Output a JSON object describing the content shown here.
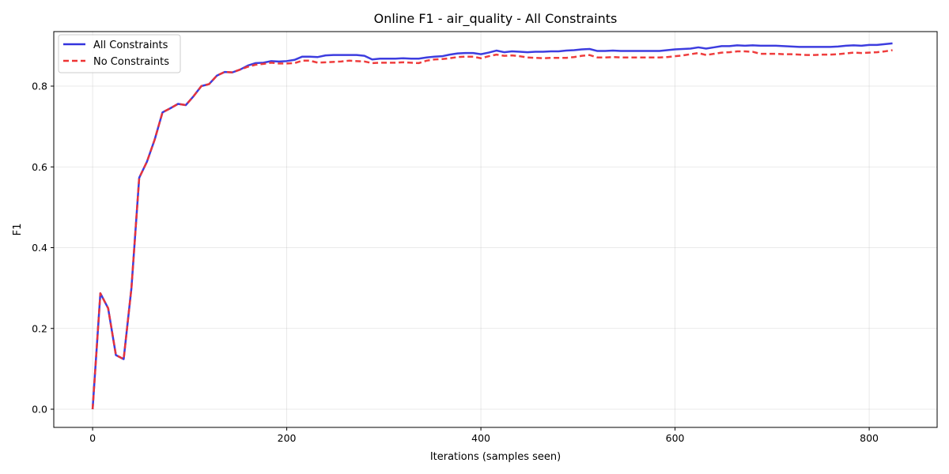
{
  "chart_data": {
    "type": "line",
    "title": "Online F1 - air_quality - All Constraints",
    "xlabel": "Iterations (samples seen)",
    "ylabel": "F1",
    "xlim": [
      -40,
      870
    ],
    "ylim": [
      -0.045,
      0.935
    ],
    "xticks": [
      0,
      200,
      400,
      600,
      800
    ],
    "yticks": [
      0.0,
      0.2,
      0.4,
      0.6,
      0.8
    ],
    "xtick_labels": [
      "0",
      "200",
      "400",
      "600",
      "800"
    ],
    "ytick_labels": [
      "0.0",
      "0.2",
      "0.4",
      "0.6",
      "0.8"
    ],
    "grid": true,
    "legend_position": "top-left",
    "series": [
      {
        "name": "All Constraints",
        "color": "#3333dd",
        "style": "solid",
        "x": [
          0,
          8,
          16,
          24,
          32,
          40,
          48,
          56,
          64,
          72,
          80,
          88,
          96,
          104,
          112,
          120,
          128,
          136,
          144,
          152,
          160,
          168,
          176,
          184,
          192,
          200,
          208,
          216,
          224,
          232,
          240,
          248,
          256,
          264,
          272,
          280,
          288,
          296,
          304,
          312,
          320,
          328,
          336,
          344,
          352,
          360,
          368,
          376,
          384,
          392,
          400,
          408,
          416,
          424,
          432,
          440,
          448,
          456,
          464,
          472,
          480,
          488,
          496,
          504,
          512,
          520,
          528,
          536,
          544,
          552,
          560,
          568,
          576,
          584,
          592,
          600,
          608,
          616,
          624,
          632,
          640,
          648,
          656,
          664,
          672,
          680,
          688,
          696,
          704,
          712,
          720,
          728,
          736,
          744,
          752,
          760,
          768,
          776,
          784,
          792,
          800,
          808,
          816,
          824
        ],
        "y": [
          0.0,
          0.287,
          0.25,
          0.134,
          0.124,
          0.3,
          0.573,
          0.613,
          0.668,
          0.735,
          0.745,
          0.756,
          0.753,
          0.775,
          0.8,
          0.805,
          0.826,
          0.835,
          0.834,
          0.841,
          0.851,
          0.857,
          0.858,
          0.862,
          0.861,
          0.862,
          0.865,
          0.873,
          0.873,
          0.872,
          0.876,
          0.877,
          0.877,
          0.877,
          0.877,
          0.875,
          0.866,
          0.868,
          0.868,
          0.868,
          0.869,
          0.868,
          0.868,
          0.871,
          0.873,
          0.874,
          0.878,
          0.881,
          0.882,
          0.882,
          0.879,
          0.883,
          0.888,
          0.884,
          0.886,
          0.885,
          0.884,
          0.885,
          0.885,
          0.886,
          0.886,
          0.888,
          0.889,
          0.891,
          0.892,
          0.887,
          0.887,
          0.888,
          0.887,
          0.887,
          0.887,
          0.887,
          0.887,
          0.887,
          0.889,
          0.891,
          0.892,
          0.893,
          0.896,
          0.893,
          0.896,
          0.899,
          0.899,
          0.901,
          0.9,
          0.901,
          0.9,
          0.9,
          0.9,
          0.899,
          0.898,
          0.897,
          0.897,
          0.897,
          0.897,
          0.897,
          0.898,
          0.9,
          0.901,
          0.9,
          0.902,
          0.902,
          0.904,
          0.906
        ]
      },
      {
        "name": "No Constraints",
        "color": "#ee3333",
        "style": "dashed",
        "x": [
          0,
          8,
          16,
          24,
          32,
          40,
          48,
          56,
          64,
          72,
          80,
          88,
          96,
          104,
          112,
          120,
          128,
          136,
          144,
          152,
          160,
          168,
          176,
          184,
          192,
          200,
          208,
          216,
          224,
          232,
          240,
          248,
          256,
          264,
          272,
          280,
          288,
          296,
          304,
          312,
          320,
          328,
          336,
          344,
          352,
          360,
          368,
          376,
          384,
          392,
          400,
          408,
          416,
          424,
          432,
          440,
          448,
          456,
          464,
          472,
          480,
          488,
          496,
          504,
          512,
          520,
          528,
          536,
          544,
          552,
          560,
          568,
          576,
          584,
          592,
          600,
          608,
          616,
          624,
          632,
          640,
          648,
          656,
          664,
          672,
          680,
          688,
          696,
          704,
          712,
          720,
          728,
          736,
          744,
          752,
          760,
          768,
          776,
          784,
          792,
          800,
          808,
          816,
          824
        ],
        "y": [
          0.0,
          0.287,
          0.25,
          0.134,
          0.124,
          0.3,
          0.573,
          0.613,
          0.668,
          0.735,
          0.745,
          0.756,
          0.753,
          0.775,
          0.8,
          0.805,
          0.826,
          0.835,
          0.834,
          0.841,
          0.848,
          0.853,
          0.855,
          0.858,
          0.856,
          0.856,
          0.857,
          0.863,
          0.863,
          0.858,
          0.859,
          0.86,
          0.861,
          0.863,
          0.862,
          0.861,
          0.857,
          0.858,
          0.858,
          0.858,
          0.859,
          0.858,
          0.857,
          0.863,
          0.866,
          0.867,
          0.869,
          0.872,
          0.873,
          0.873,
          0.869,
          0.874,
          0.878,
          0.875,
          0.876,
          0.874,
          0.871,
          0.87,
          0.869,
          0.87,
          0.87,
          0.87,
          0.872,
          0.875,
          0.877,
          0.871,
          0.871,
          0.872,
          0.871,
          0.871,
          0.871,
          0.871,
          0.871,
          0.871,
          0.872,
          0.874,
          0.876,
          0.879,
          0.882,
          0.877,
          0.88,
          0.883,
          0.884,
          0.886,
          0.886,
          0.885,
          0.88,
          0.88,
          0.88,
          0.879,
          0.879,
          0.878,
          0.877,
          0.877,
          0.878,
          0.878,
          0.879,
          0.881,
          0.883,
          0.882,
          0.883,
          0.884,
          0.886,
          0.889
        ]
      }
    ]
  }
}
